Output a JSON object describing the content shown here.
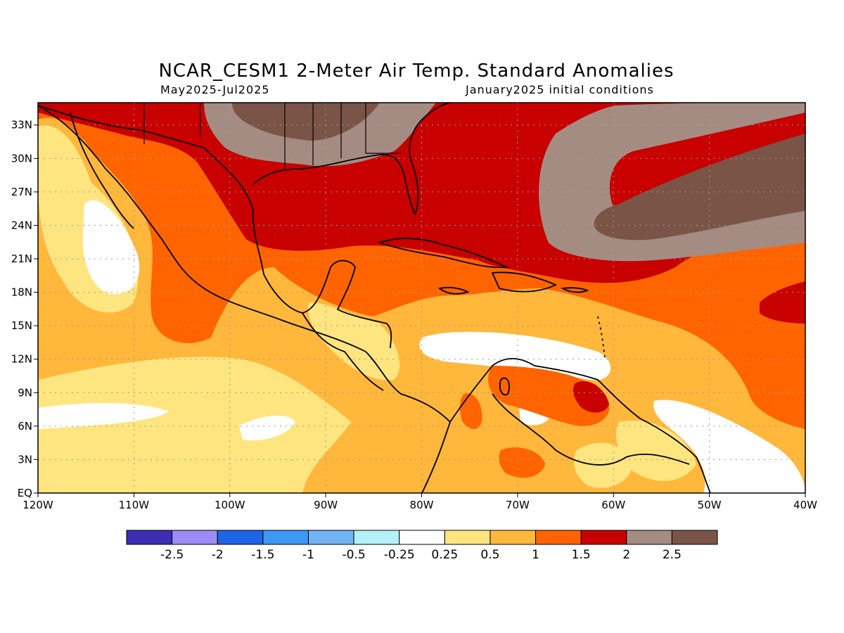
{
  "title": "NCAR_CESM1 2-Meter Air Temp. Standard Anomalies",
  "subtitle_left": "May2025-Jul2025",
  "subtitle_right": "January2025 initial conditions",
  "map": {
    "lon_range": [
      -120,
      -40
    ],
    "lat_range": [
      0,
      35
    ],
    "lon_ticks": [
      {
        "value": -120,
        "label": "120W"
      },
      {
        "value": -110,
        "label": "110W"
      },
      {
        "value": -100,
        "label": "100W"
      },
      {
        "value": -90,
        "label": "90W"
      },
      {
        "value": -80,
        "label": "80W"
      },
      {
        "value": -70,
        "label": "70W"
      },
      {
        "value": -60,
        "label": "60W"
      },
      {
        "value": -50,
        "label": "50W"
      },
      {
        "value": -40,
        "label": "40W"
      }
    ],
    "lat_ticks": [
      {
        "value": 0,
        "label": "EQ"
      },
      {
        "value": 3,
        "label": "3N"
      },
      {
        "value": 6,
        "label": "6N"
      },
      {
        "value": 9,
        "label": "9N"
      },
      {
        "value": 12,
        "label": "12N"
      },
      {
        "value": 15,
        "label": "15N"
      },
      {
        "value": 18,
        "label": "18N"
      },
      {
        "value": 21,
        "label": "21N"
      },
      {
        "value": 24,
        "label": "24N"
      },
      {
        "value": 27,
        "label": "27N"
      },
      {
        "value": 30,
        "label": "30N"
      },
      {
        "value": 33,
        "label": "33N"
      }
    ],
    "grid": "dotted"
  },
  "colorbar": {
    "colors": [
      "#3c2db4",
      "#9b8cf5",
      "#1f64e6",
      "#3c97f5",
      "#73b4f5",
      "#b4f0fa",
      "#ffffff",
      "#ffe57f",
      "#ffb73c",
      "#ff6400",
      "#c80000",
      "#a58c82",
      "#7a5446"
    ],
    "labels": [
      "-2.5",
      "-2",
      "-1.5",
      "-1",
      "-0.5",
      "-0.25",
      "0.25",
      "0.5",
      "1",
      "1.5",
      "2",
      "2.5"
    ]
  }
}
